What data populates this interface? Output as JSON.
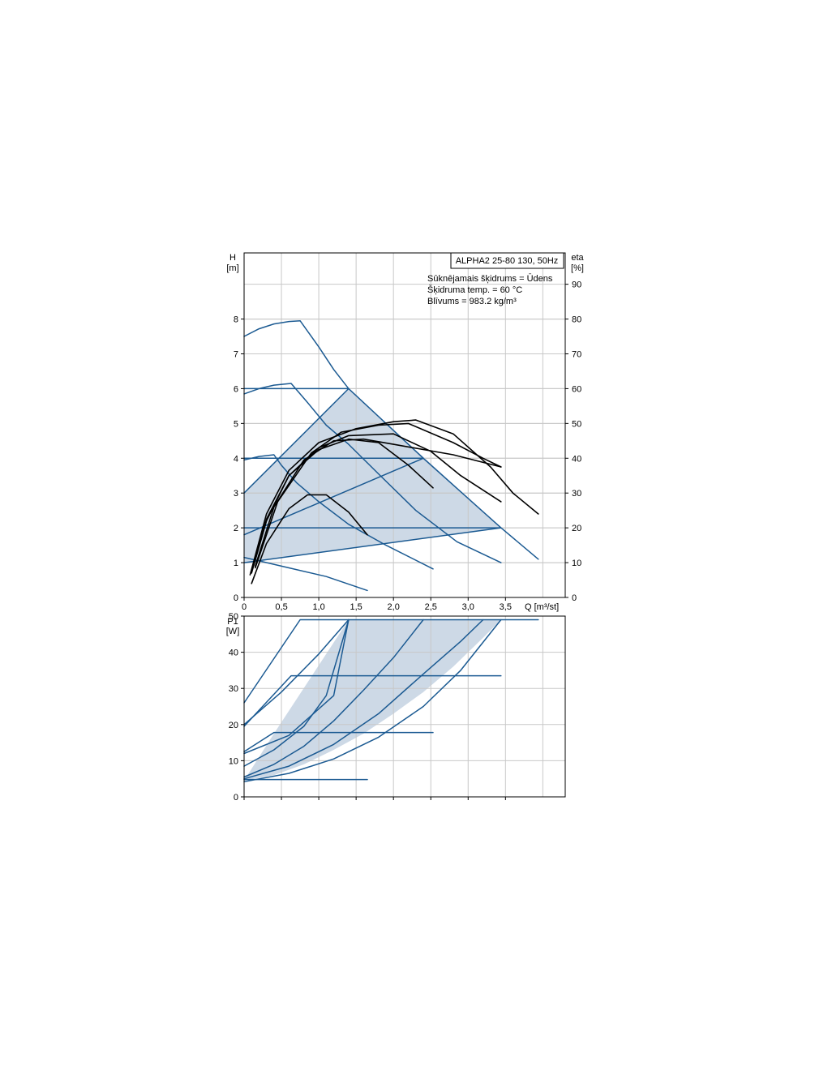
{
  "colors": {
    "pump_curve": "#1b5a92",
    "efficiency_curve": "#000000",
    "operating_area": "#cdd9e6",
    "grid": "#c8c8c8"
  },
  "chart_data": [
    {
      "type": "line",
      "name": "head",
      "title_box": "ALPHA2 25-80 130, 50Hz",
      "info_lines": [
        "Sūknējamais šķidrums = Ūdens",
        "Šķidruma temp. = 60 °C",
        "Blīvums = 983.2 kg/m³"
      ],
      "xlabel": "Q [m³/st]",
      "ylabel_left": [
        "H",
        "[m]"
      ],
      "ylabel_right": [
        "eta",
        "[%]"
      ],
      "xlim": [
        0,
        4.3
      ],
      "ylim": [
        0,
        9.9
      ],
      "ylim_right": [
        0,
        99
      ],
      "x_ticks": [
        "0",
        "0,5",
        "1,0",
        "1,5",
        "2,0",
        "2,5",
        "3,0",
        "3,5"
      ],
      "y_ticks": [
        "0",
        "1",
        "2",
        "3",
        "4",
        "5",
        "6",
        "7",
        "8"
      ],
      "y_ticks_right": [
        "0",
        "10",
        "20",
        "30",
        "40",
        "50",
        "60",
        "70",
        "80",
        "90"
      ],
      "grid": true,
      "operating_area": [
        [
          0,
          1.0
        ],
        [
          0,
          3.0
        ],
        [
          1.4,
          6.0
        ],
        [
          3.44,
          2.0
        ],
        [
          0,
          1.0
        ]
      ],
      "series": [
        {
          "kind": "pump",
          "points": [
            [
              0,
              7.5
            ],
            [
              0.2,
              7.72
            ],
            [
              0.4,
              7.86
            ],
            [
              0.6,
              7.93
            ],
            [
              0.75,
              7.95
            ],
            [
              1.0,
              7.2
            ],
            [
              1.2,
              6.55
            ],
            [
              1.4,
              6.0
            ],
            [
              2.4,
              4.0
            ],
            [
              3.44,
              2.0
            ],
            [
              3.94,
              1.1
            ]
          ]
        },
        {
          "kind": "pump",
          "points": [
            [
              0,
              5.85
            ],
            [
              0.2,
              6.0
            ],
            [
              0.4,
              6.1
            ],
            [
              0.63,
              6.15
            ],
            [
              0.85,
              5.6
            ],
            [
              1.1,
              4.95
            ],
            [
              1.4,
              4.4
            ],
            [
              1.8,
              3.55
            ],
            [
              2.3,
              2.5
            ],
            [
              2.85,
              1.6
            ],
            [
              3.44,
              1.0
            ]
          ]
        },
        {
          "kind": "pump",
          "points": [
            [
              0,
              3.95
            ],
            [
              0.2,
              4.05
            ],
            [
              0.4,
              4.1
            ],
            [
              0.5,
              3.8
            ],
            [
              0.7,
              3.3
            ],
            [
              1.0,
              2.75
            ],
            [
              1.4,
              2.1
            ],
            [
              1.9,
              1.5
            ],
            [
              2.53,
              0.82
            ]
          ]
        },
        {
          "kind": "pump",
          "points": [
            [
              0,
              1.15
            ],
            [
              0.2,
              1.05
            ],
            [
              0.6,
              0.85
            ],
            [
              1.1,
              0.6
            ],
            [
              1.65,
              0.2
            ]
          ]
        },
        {
          "kind": "pump",
          "points": [
            [
              0,
              6.0
            ],
            [
              1.4,
              6.0
            ]
          ]
        },
        {
          "kind": "pump",
          "points": [
            [
              0,
              4.0
            ],
            [
              2.4,
              4.0
            ]
          ]
        },
        {
          "kind": "pump",
          "points": [
            [
              0,
              2.0
            ],
            [
              3.44,
              2.0
            ]
          ]
        },
        {
          "kind": "pump",
          "points": [
            [
              0,
              1.0
            ],
            [
              3.44,
              2.0
            ]
          ]
        },
        {
          "kind": "pump",
          "points": [
            [
              0,
              1.8
            ],
            [
              2.4,
              4.0
            ]
          ]
        },
        {
          "kind": "pump",
          "points": [
            [
              0,
              3.0
            ],
            [
              1.4,
              6.0
            ]
          ]
        },
        {
          "kind": "eff",
          "points": [
            [
              0.08,
              6.5
            ],
            [
              0.3,
              24.0
            ],
            [
              0.6,
              36.5
            ],
            [
              1.0,
              44.5
            ],
            [
              1.5,
              48.5
            ],
            [
              2.0,
              50.5
            ],
            [
              2.3,
              51.0
            ],
            [
              2.8,
              47.0
            ],
            [
              3.3,
              37.5
            ],
            [
              3.6,
              30.0
            ],
            [
              3.94,
              24.0
            ]
          ]
        },
        {
          "kind": "eff",
          "points": [
            [
              0.1,
              7.0
            ],
            [
              0.3,
              22.0
            ],
            [
              0.6,
              35.0
            ],
            [
              1.0,
              43.0
            ],
            [
              1.4,
              46.5
            ],
            [
              2.0,
              47.0
            ],
            [
              2.5,
              42.0
            ],
            [
              2.9,
              35.0
            ],
            [
              3.44,
              27.5
            ]
          ]
        },
        {
          "kind": "eff",
          "points": [
            [
              0.1,
              7.5
            ],
            [
              0.3,
              22.5
            ],
            [
              0.6,
              35.0
            ],
            [
              1.0,
              42.5
            ],
            [
              1.4,
              45.5
            ],
            [
              1.8,
              44.5
            ],
            [
              2.2,
              38.0
            ],
            [
              2.53,
              31.5
            ]
          ]
        },
        {
          "kind": "eff",
          "points": [
            [
              0.1,
              4.0
            ],
            [
              0.3,
              15.5
            ],
            [
              0.6,
              25.5
            ],
            [
              0.85,
              29.5
            ],
            [
              1.1,
              29.5
            ],
            [
              1.4,
              24.5
            ],
            [
              1.65,
              18.0
            ]
          ]
        },
        {
          "kind": "eff",
          "points": [
            [
              0.15,
              9.0
            ],
            [
              0.4,
              26.0
            ],
            [
              0.8,
              39.5
            ],
            [
              1.2,
              45.0
            ],
            [
              1.6,
              45.5
            ],
            [
              2.0,
              44.0
            ],
            [
              2.8,
              41.0
            ],
            [
              3.44,
              37.5
            ]
          ]
        },
        {
          "kind": "eff",
          "points": [
            [
              0.15,
              8.5
            ],
            [
              0.45,
              27.5
            ],
            [
              0.9,
              41.5
            ],
            [
              1.3,
              47.5
            ],
            [
              1.8,
              49.5
            ],
            [
              2.2,
              50.0
            ],
            [
              2.8,
              44.5
            ],
            [
              3.2,
              40.0
            ],
            [
              3.44,
              37.5
            ]
          ]
        }
      ]
    },
    {
      "type": "line",
      "name": "power",
      "ylabel_left": [
        "P1",
        "[W]"
      ],
      "xlim": [
        0,
        4.3
      ],
      "ylim": [
        0,
        50
      ],
      "y_ticks": [
        "0",
        "10",
        "20",
        "30",
        "40",
        "50"
      ],
      "grid": true,
      "operating_area": [
        [
          0,
          4.5
        ],
        [
          0.4,
          17.5
        ],
        [
          1.4,
          49.0
        ],
        [
          3.44,
          49.0
        ],
        [
          3.2,
          44.0
        ],
        [
          2.8,
          36.0
        ],
        [
          2.4,
          29.0
        ],
        [
          2.0,
          23.0
        ],
        [
          1.6,
          17.5
        ],
        [
          1.2,
          13.0
        ],
        [
          0.8,
          9.0
        ],
        [
          0.4,
          6.0
        ],
        [
          0,
          4.5
        ]
      ],
      "series": [
        {
          "kind": "pump",
          "points": [
            [
              0,
              26.0
            ],
            [
              0.75,
              49.0
            ],
            [
              3.94,
              49.0
            ]
          ]
        },
        {
          "kind": "pump",
          "points": [
            [
              0,
              19.5
            ],
            [
              0.63,
              33.5
            ],
            [
              3.44,
              33.5
            ]
          ]
        },
        {
          "kind": "pump",
          "points": [
            [
              0,
              12.5
            ],
            [
              0.4,
              17.8
            ],
            [
              2.53,
              17.8
            ]
          ]
        },
        {
          "kind": "pump",
          "points": [
            [
              0,
              4.8
            ],
            [
              1.65,
              4.8
            ]
          ]
        },
        {
          "kind": "pump",
          "points": [
            [
              0,
              8.5
            ],
            [
              0.4,
              13.0
            ],
            [
              0.8,
              19.5
            ],
            [
              1.1,
              28.0
            ],
            [
              1.4,
              49.0
            ]
          ]
        },
        {
          "kind": "pump",
          "points": [
            [
              0,
              5.5
            ],
            [
              0.4,
              9.0
            ],
            [
              0.8,
              14.0
            ],
            [
              1.2,
              21.0
            ],
            [
              1.6,
              29.5
            ],
            [
              2.0,
              38.5
            ],
            [
              2.4,
              49.0
            ]
          ]
        },
        {
          "kind": "pump",
          "points": [
            [
              0,
              5.0
            ],
            [
              0.6,
              8.5
            ],
            [
              1.2,
              14.5
            ],
            [
              1.8,
              23.0
            ],
            [
              2.4,
              34.0
            ],
            [
              2.9,
              43.0
            ],
            [
              3.2,
              49.0
            ]
          ]
        },
        {
          "kind": "pump",
          "points": [
            [
              0,
              4.2
            ],
            [
              0.6,
              6.5
            ],
            [
              1.2,
              10.5
            ],
            [
              1.8,
              16.5
            ],
            [
              2.4,
              25.0
            ],
            [
              2.9,
              35.0
            ],
            [
              3.44,
              49.0
            ]
          ]
        },
        {
          "kind": "pump",
          "points": [
            [
              0,
              12.0
            ],
            [
              0.6,
              17.0
            ],
            [
              1.2,
              28.0
            ],
            [
              1.4,
              49.0
            ]
          ]
        },
        {
          "kind": "pump",
          "points": [
            [
              0,
              20.0
            ],
            [
              0.5,
              29.0
            ],
            [
              1.0,
              39.5
            ],
            [
              1.4,
              49.0
            ]
          ]
        }
      ]
    }
  ]
}
